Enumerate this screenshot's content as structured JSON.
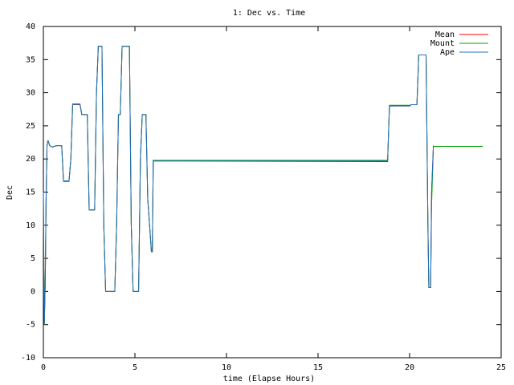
{
  "chart_data": {
    "type": "line",
    "title": "1: Dec vs. Time",
    "x_label": "time (Elapse Hours)",
    "y_label": "Dec",
    "x": [
      0,
      0.05,
      0.1,
      0.15,
      0.2,
      0.25,
      0.35,
      0.5,
      0.7,
      1.0,
      1.1,
      1.4,
      1.5,
      1.6,
      2.0,
      2.1,
      2.4,
      2.5,
      2.8,
      2.9,
      3.0,
      3.2,
      3.3,
      3.4,
      3.9,
      4.0,
      4.1,
      4.2,
      4.3,
      4.7,
      4.8,
      4.9,
      5.2,
      5.3,
      5.4,
      5.6,
      5.7,
      5.8,
      5.9,
      5.95,
      6.0,
      18.5,
      18.8,
      18.9,
      20.0,
      20.1,
      20.4,
      20.5,
      20.9,
      21.0,
      21.05,
      21.15,
      21.2,
      21.3,
      24
    ],
    "series": [
      {
        "name": "Mean",
        "color": "#ff0000",
        "values": [
          15,
          -5,
          1,
          14,
          22,
          22.8,
          22,
          21.8,
          22,
          22,
          16.6,
          16.6,
          20,
          28.3,
          28.3,
          26.7,
          26.7,
          12.3,
          12.3,
          30,
          37,
          37,
          10,
          0,
          0,
          10,
          26.7,
          26.7,
          37,
          37,
          10,
          0,
          0,
          20,
          26.7,
          26.7,
          14,
          10,
          6,
          6,
          19.7,
          19.6,
          19.6,
          28,
          28,
          28.2,
          28.2,
          35.7,
          35.7,
          10,
          0.6,
          0.6,
          15,
          22,
          null
        ]
      },
      {
        "name": "Mount",
        "color": "#00a000",
        "values": [
          15,
          -5,
          1,
          14,
          22,
          22.8,
          22,
          21.8,
          22,
          22,
          16.7,
          16.7,
          20,
          28.2,
          28.2,
          26.7,
          26.7,
          12.3,
          12.3,
          30,
          37,
          37,
          10,
          0,
          0,
          10,
          26.7,
          26.7,
          37,
          37,
          10,
          0,
          0,
          20,
          26.7,
          26.7,
          14,
          10,
          6,
          6,
          19.7,
          19.7,
          19.7,
          28.1,
          28.1,
          28.2,
          28.2,
          35.7,
          35.7,
          10,
          0.6,
          0.6,
          13,
          21.9,
          21.9
        ]
      },
      {
        "name": "Ape",
        "color": "#1f6fbf",
        "values": [
          15,
          -5,
          1,
          14,
          22,
          22.8,
          22,
          21.8,
          22,
          22,
          16.7,
          16.7,
          20,
          28.2,
          28.2,
          26.7,
          26.7,
          12.3,
          12.3,
          30,
          37,
          37,
          10,
          0,
          0,
          10,
          26.7,
          26.7,
          37,
          37,
          10,
          0,
          0,
          20,
          26.7,
          26.7,
          14,
          10,
          6,
          6,
          19.8,
          19.8,
          19.8,
          28,
          28,
          28.2,
          28.2,
          35.7,
          35.7,
          10,
          0.6,
          0.6,
          15,
          22,
          null
        ]
      }
    ],
    "xlim": [
      0,
      25
    ],
    "xticks": [
      0,
      5,
      10,
      15,
      20,
      25
    ],
    "ylim": [
      -10,
      40
    ],
    "yticks": [
      -10,
      -5,
      0,
      5,
      10,
      15,
      20,
      25,
      30,
      35,
      40
    ],
    "legend": "top-right"
  }
}
